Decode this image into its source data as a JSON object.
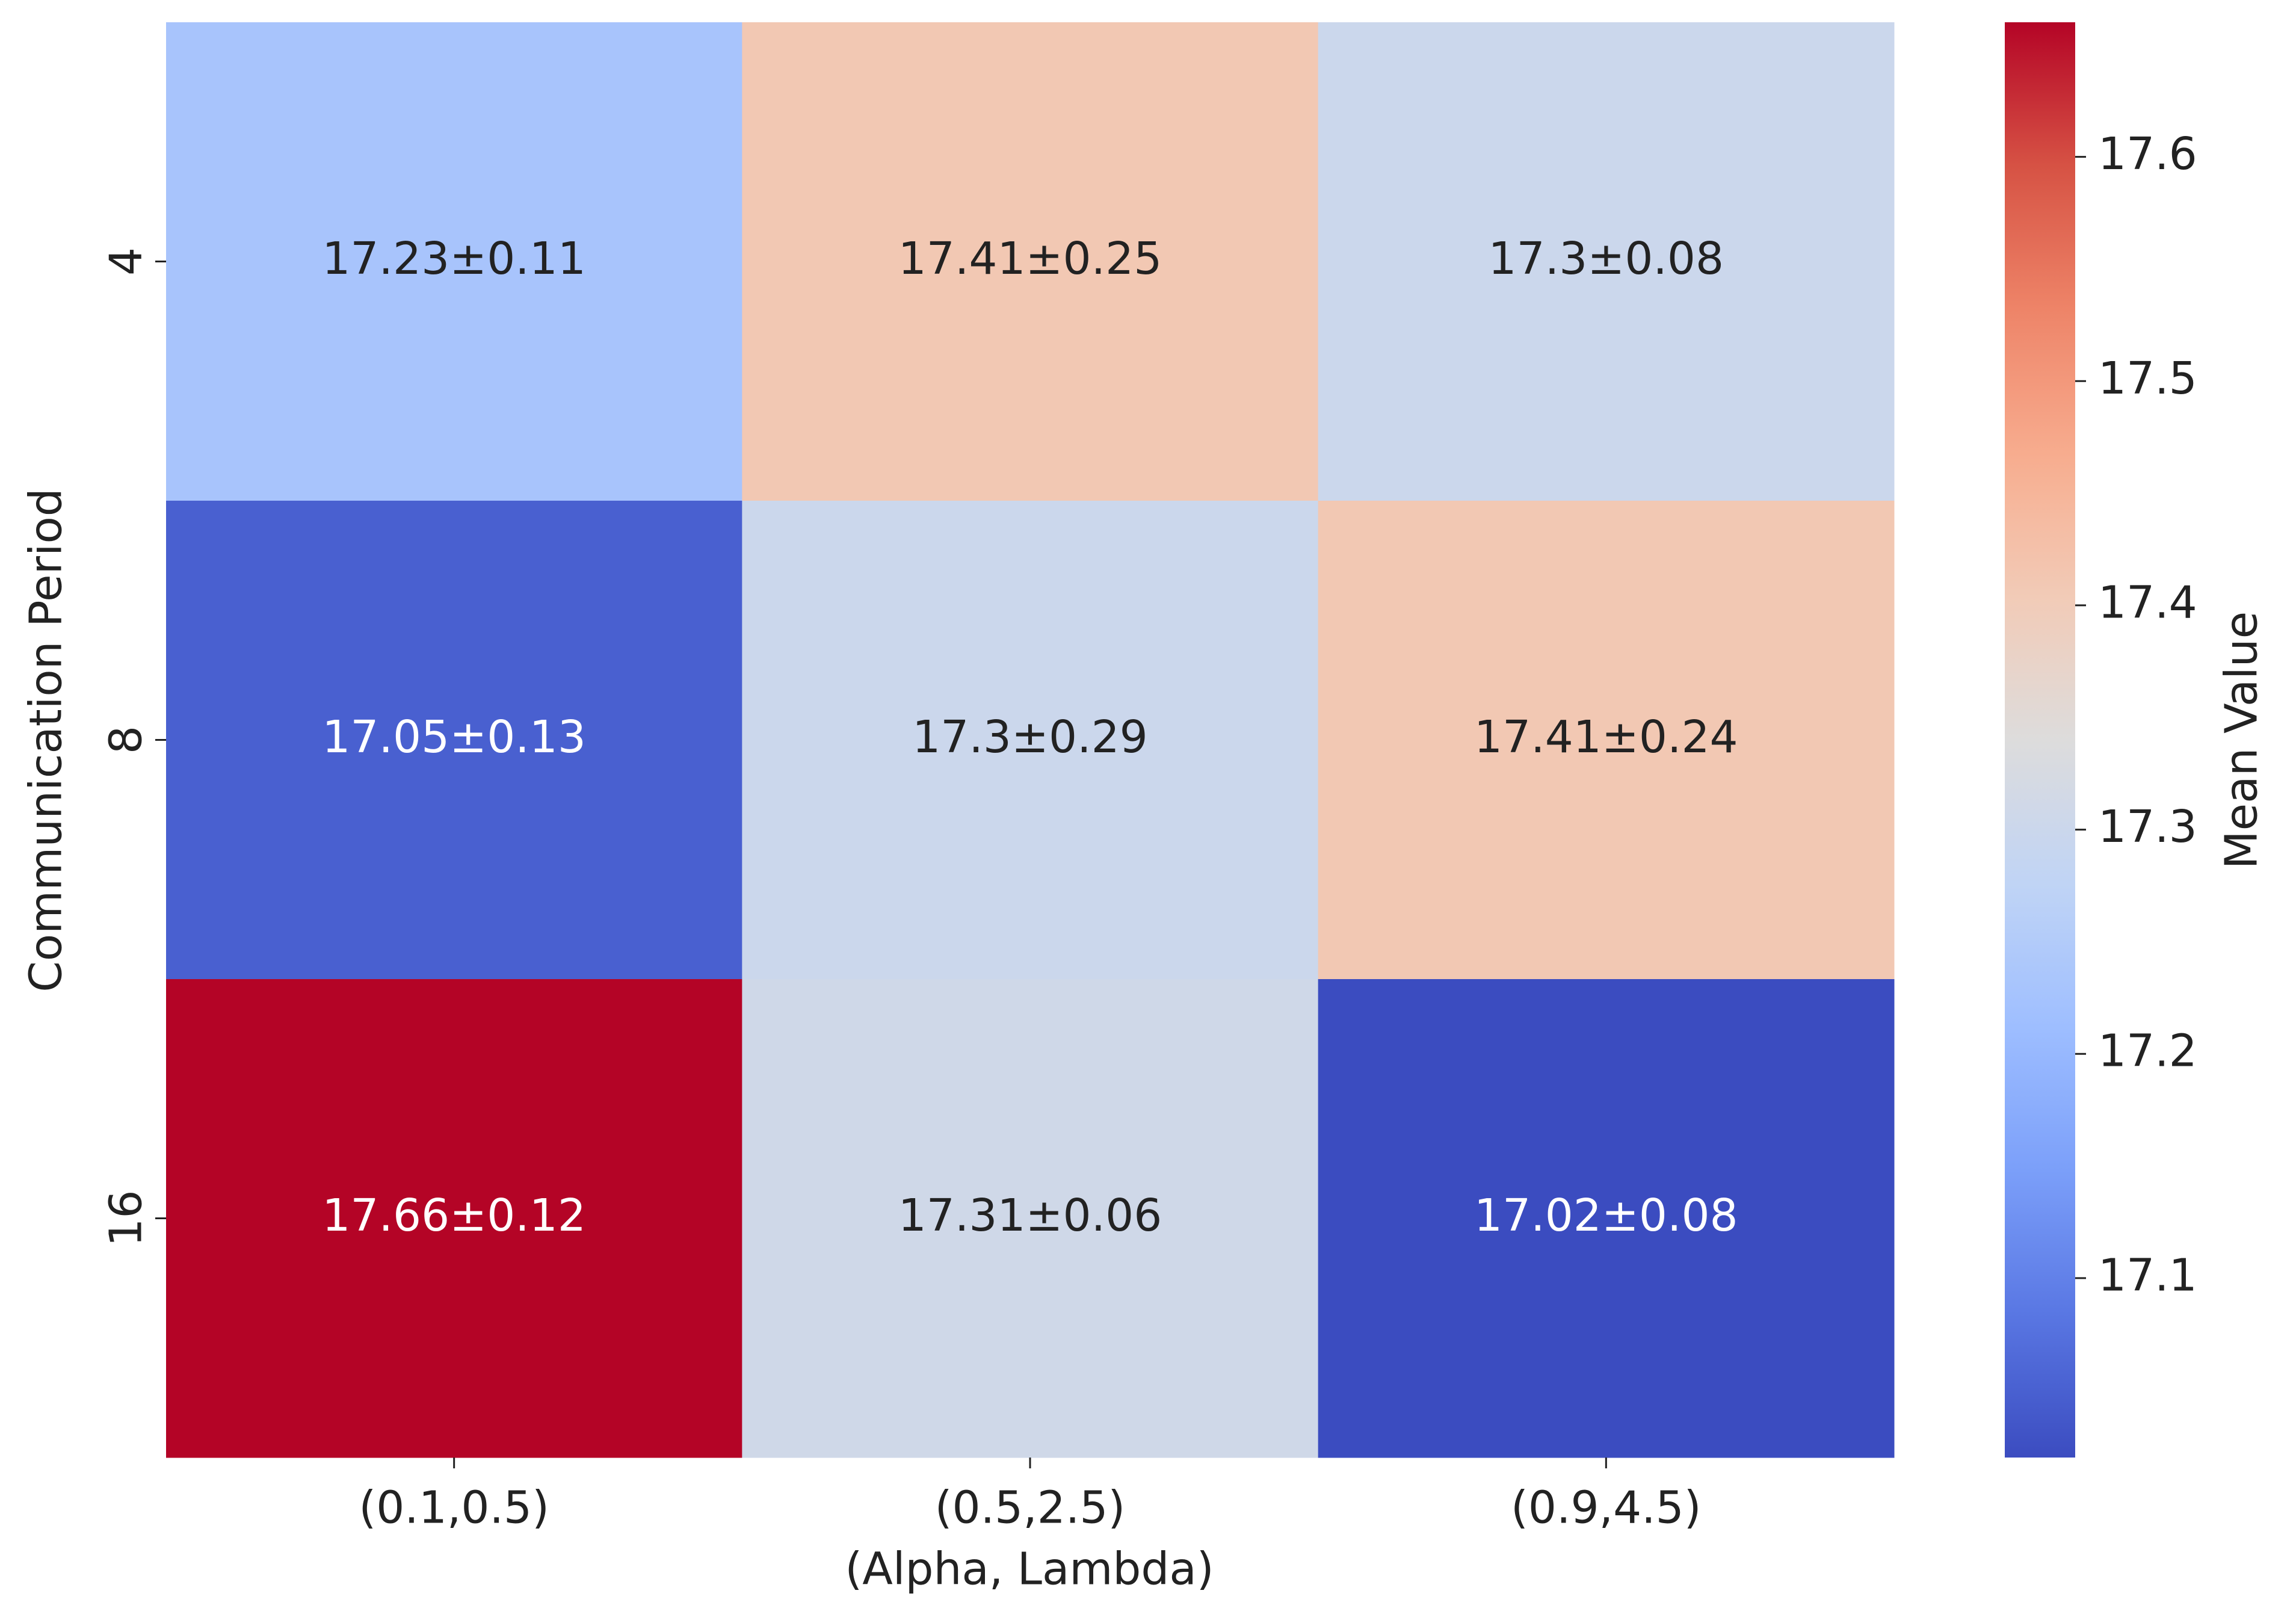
{
  "chart_data": {
    "type": "heatmap",
    "x_label": "(Alpha, Lambda)",
    "y_label": "Communication Period",
    "x_categories": [
      "(0.1,0.5)",
      "(0.5,2.5)",
      "(0.9,4.5)"
    ],
    "y_categories": [
      "4",
      "8",
      "16"
    ],
    "values": [
      [
        17.23,
        17.41,
        17.3
      ],
      [
        17.05,
        17.3,
        17.41
      ],
      [
        17.66,
        17.31,
        17.02
      ]
    ],
    "errors": [
      [
        0.11,
        0.25,
        0.08
      ],
      [
        0.13,
        0.29,
        0.24
      ],
      [
        0.12,
        0.06,
        0.08
      ]
    ],
    "value_labels": [
      [
        "17.23±0.11",
        "17.41±0.25",
        "17.3±0.08"
      ],
      [
        "17.05±0.13",
        "17.3±0.29",
        "17.41±0.24"
      ],
      [
        "17.66±0.12",
        "17.31±0.06",
        "17.02±0.08"
      ]
    ],
    "colormap": "coolwarm",
    "colorbar_label": "Mean Value",
    "clim": [
      17.02,
      17.66
    ],
    "cticks": [
      17.1,
      17.2,
      17.3,
      17.4,
      17.5,
      17.6
    ]
  }
}
